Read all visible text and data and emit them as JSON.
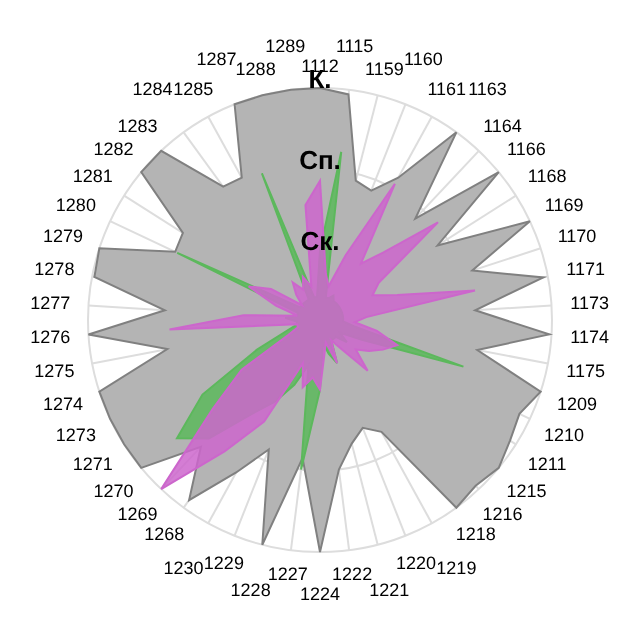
{
  "chart_data": {
    "type": "radar",
    "categories": [
      "1112",
      "1115",
      "1159",
      "1160",
      "1161",
      "1163",
      "1164",
      "1166",
      "1168",
      "1169",
      "1170",
      "1171",
      "1173",
      "1174",
      "1175",
      "1209",
      "1210",
      "1211",
      "1215",
      "1216",
      "1218",
      "1219",
      "1220",
      "1221",
      "1222",
      "1224",
      "1227",
      "1228",
      "1229",
      "1230",
      "1268",
      "1269",
      "1270",
      "1271",
      "1273",
      "1274",
      "1275",
      "1276",
      "1277",
      "1278",
      "1279",
      "1280",
      "1281",
      "1282",
      "1283",
      "1284",
      "1285",
      "1287",
      "1288",
      "1289"
    ],
    "ylim": [
      0,
      1
    ],
    "yticks": [
      {
        "value": 0.3,
        "label": "Ск."
      },
      {
        "value": 0.65,
        "label": "Сп."
      },
      {
        "value": 1,
        "label": "К."
      }
    ],
    "grid": true,
    "series": [
      {
        "color": "#b4b4b4",
        "values": [
          1.0,
          0.98,
          0.62,
          0.6,
          0.7,
          1.0,
          0.6,
          1.0,
          0.6,
          1.0,
          0.69,
          0.98,
          0.67,
          0.99,
          0.69,
          1.0,
          0.95,
          0.97,
          1.0,
          0.98,
          1.0,
          0.55,
          0.5,
          0.55,
          0.65,
          1.0,
          0.6,
          1.0,
          0.6,
          0.75,
          0.96,
          0.75,
          1.0,
          1.0,
          1.0,
          1.0,
          0.67,
          1.0,
          0.67,
          0.99,
          1.0,
          0.69,
          0.7,
          1.0,
          1.0,
          0.71,
          0.7,
          1.0,
          1.0,
          1.0
        ]
      },
      {
        "color": "#5cb85c",
        "values": [
          0.3,
          0.73,
          0.1,
          0.1,
          0.12,
          0.1,
          0.1,
          0.1,
          0.1,
          0.1,
          0.1,
          0.1,
          0.1,
          0.1,
          0.15,
          0.65,
          0.2,
          0.1,
          0.15,
          0.1,
          0.1,
          0.1,
          0.2,
          0.15,
          0.1,
          0.3,
          0.65,
          0.2,
          0.3,
          0.4,
          0.5,
          0.7,
          0.8,
          0.6,
          0.3,
          0.15,
          0.1,
          0.1,
          0.15,
          0.1,
          0.1,
          0.68,
          0.1,
          0.1,
          0.1,
          0.1,
          0.1,
          0.68,
          0.1,
          0.1
        ]
      },
      {
        "color": "#cc66cc",
        "values": [
          0.6,
          0.2,
          0.15,
          0.3,
          0.67,
          0.3,
          0.4,
          0.66,
          0.3,
          0.25,
          0.35,
          0.68,
          0.2,
          0.15,
          0.25,
          0.35,
          0.3,
          0.25,
          0.2,
          0.3,
          0.15,
          0.1,
          0.2,
          0.1,
          0.15,
          0.3,
          0.25,
          0.3,
          0.2,
          0.5,
          0.7,
          1.0,
          0.6,
          0.4,
          0.15,
          0.1,
          0.1,
          0.65,
          0.33,
          0.1,
          0.2,
          0.34,
          0.25,
          0.1,
          0.15,
          0.2,
          0.15,
          0.2,
          0.15,
          0.5
        ]
      }
    ]
  }
}
